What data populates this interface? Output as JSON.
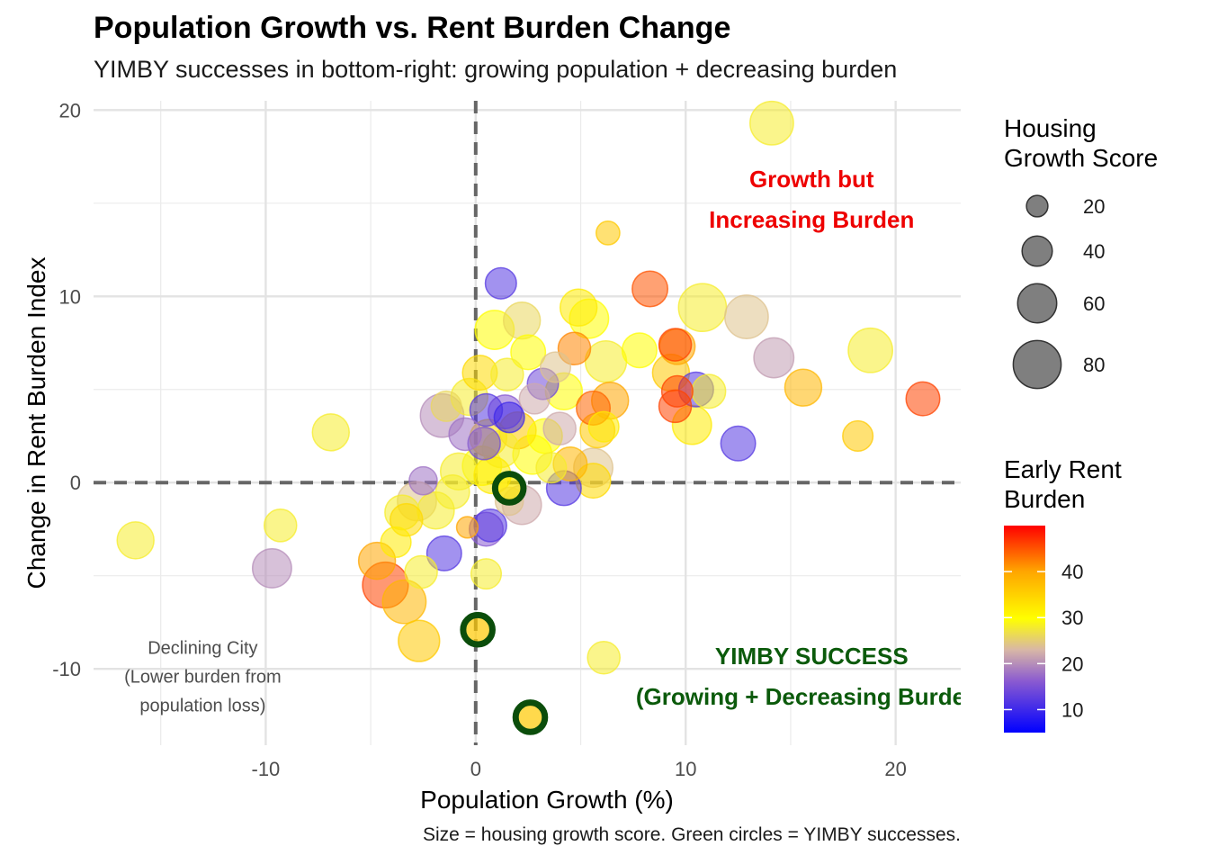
{
  "title": "Population Growth vs. Rent Burden Change",
  "subtitle": "YIMBY successes in bottom-right: growing population + decreasing burden",
  "caption": "Size = housing growth score. Green circles = YIMBY successes.",
  "chart_data": {
    "type": "scatter",
    "xlabel": "Population Growth (%)",
    "ylabel": "Change in Rent Burden Index",
    "xlim": [
      -18.2,
      23.1
    ],
    "ylim": [
      -14.1,
      20.5
    ],
    "x_ticks": [
      -10,
      0,
      10,
      20
    ],
    "y_ticks": [
      -10,
      0,
      10,
      20
    ],
    "x_tick_labels": [
      "-10",
      "0",
      "10",
      "20"
    ],
    "y_tick_labels": [
      "-10",
      "0",
      "10",
      "20"
    ],
    "grid": true,
    "reference_lines": {
      "x": 0,
      "y": 0,
      "style": "dashed"
    },
    "size_legend": {
      "title": [
        "Housing",
        "Growth Score"
      ],
      "values": [
        20,
        40,
        60,
        80
      ],
      "labels": [
        "20",
        "40",
        "60",
        "80"
      ]
    },
    "color_legend": {
      "title": [
        "Early Rent",
        "Burden"
      ],
      "min": 5,
      "max": 50,
      "breaks": [
        10,
        20,
        30,
        40
      ],
      "labels": [
        "10",
        "20",
        "30",
        "40"
      ],
      "colors": [
        "#0000ff",
        "#8b5bd0",
        "#d8b7a6",
        "#ffff00",
        "#ffa500",
        "#ff0000"
      ]
    },
    "annotations": [
      {
        "lines": [
          "Growth but",
          "Increasing Burden"
        ],
        "x": 16,
        "y": 15.2,
        "color": "#ee0000",
        "style": "bold"
      },
      {
        "lines": [
          "YIMBY SUCCESS",
          "(Growing + Decreasing Burden)"
        ],
        "x": 16,
        "y": -10.4,
        "color": "#0b5a0b",
        "style": "bold"
      },
      {
        "lines": [
          "Declining City",
          "(Lower burden from",
          "population loss)"
        ],
        "x": -13,
        "y": -10.3,
        "color": "#4d4d4d",
        "style": "plain"
      }
    ],
    "points": [
      {
        "x": 14.1,
        "y": 19.3,
        "size": 70,
        "burden": 28
      },
      {
        "x": 6.3,
        "y": 13.4,
        "size": 25,
        "burden": 36
      },
      {
        "x": 1.2,
        "y": 10.7,
        "size": 42,
        "burden": 12
      },
      {
        "x": 8.3,
        "y": 10.4,
        "size": 52,
        "burden": 45
      },
      {
        "x": 10.8,
        "y": 9.4,
        "size": 80,
        "burden": 28
      },
      {
        "x": 12.9,
        "y": 8.9,
        "size": 70,
        "burden": 24
      },
      {
        "x": 4.9,
        "y": 9.4,
        "size": 55,
        "burden": 32
      },
      {
        "x": 5.4,
        "y": 8.8,
        "size": 60,
        "burden": 30
      },
      {
        "x": 2.2,
        "y": 8.7,
        "size": 55,
        "burden": 26
      },
      {
        "x": 0.9,
        "y": 8.2,
        "size": 60,
        "burden": 30
      },
      {
        "x": 9.5,
        "y": 7.4,
        "size": 45,
        "burden": 46
      },
      {
        "x": 9.6,
        "y": 7.3,
        "size": 52,
        "burden": 40
      },
      {
        "x": 7.8,
        "y": 7.1,
        "size": 50,
        "burden": 30
      },
      {
        "x": 18.8,
        "y": 7.1,
        "size": 72,
        "burden": 28
      },
      {
        "x": 14.2,
        "y": 6.7,
        "size": 62,
        "burden": 21
      },
      {
        "x": 4.7,
        "y": 7.2,
        "size": 45,
        "burden": 42
      },
      {
        "x": 2.5,
        "y": 7.0,
        "size": 50,
        "burden": 30
      },
      {
        "x": 6.2,
        "y": 6.5,
        "size": 65,
        "burden": 28
      },
      {
        "x": 3.8,
        "y": 6.2,
        "size": 40,
        "burden": 24
      },
      {
        "x": 1.5,
        "y": 5.8,
        "size": 45,
        "burden": 28
      },
      {
        "x": 0.2,
        "y": 5.9,
        "size": 50,
        "burden": 34
      },
      {
        "x": 9.3,
        "y": 5.9,
        "size": 55,
        "burden": 36
      },
      {
        "x": 10.5,
        "y": 5.0,
        "size": 50,
        "burden": 12
      },
      {
        "x": 15.6,
        "y": 5.1,
        "size": 55,
        "burden": 38
      },
      {
        "x": 21.3,
        "y": 4.5,
        "size": 48,
        "burden": 46
      },
      {
        "x": 9.6,
        "y": 4.9,
        "size": 42,
        "burden": 46
      },
      {
        "x": 9.5,
        "y": 4.1,
        "size": 45,
        "burden": 46
      },
      {
        "x": 11.1,
        "y": 4.9,
        "size": 48,
        "burden": 28
      },
      {
        "x": 3.2,
        "y": 5.3,
        "size": 42,
        "burden": 14
      },
      {
        "x": 2.8,
        "y": 4.5,
        "size": 40,
        "burden": 22
      },
      {
        "x": 4.2,
        "y": 4.9,
        "size": 55,
        "burden": 30
      },
      {
        "x": 6.4,
        "y": 4.4,
        "size": 55,
        "burden": 40
      },
      {
        "x": 5.6,
        "y": 4.0,
        "size": 48,
        "burden": 44
      },
      {
        "x": 1.4,
        "y": 3.8,
        "size": 48,
        "burden": 16
      },
      {
        "x": 1.6,
        "y": 3.5,
        "size": 40,
        "burden": 10
      },
      {
        "x": 0.5,
        "y": 3.9,
        "size": 45,
        "burden": 12
      },
      {
        "x": -1.6,
        "y": 3.6,
        "size": 70,
        "burden": 20
      },
      {
        "x": -1.4,
        "y": 4.1,
        "size": 40,
        "burden": 26
      },
      {
        "x": -0.3,
        "y": 4.6,
        "size": 55,
        "burden": 28
      },
      {
        "x": -6.9,
        "y": 2.7,
        "size": 55,
        "burden": 28
      },
      {
        "x": 10.3,
        "y": 3.1,
        "size": 60,
        "burden": 32
      },
      {
        "x": 12.5,
        "y": 2.1,
        "size": 50,
        "burden": 12
      },
      {
        "x": 18.2,
        "y": 2.5,
        "size": 40,
        "burden": 36
      },
      {
        "x": 5.8,
        "y": 2.8,
        "size": 50,
        "burden": 36
      },
      {
        "x": 6.1,
        "y": 3.0,
        "size": 40,
        "burden": 32
      },
      {
        "x": 4.0,
        "y": 2.9,
        "size": 45,
        "burden": 22
      },
      {
        "x": 3.3,
        "y": 2.5,
        "size": 50,
        "burden": 30
      },
      {
        "x": 2.0,
        "y": 2.8,
        "size": 55,
        "burden": 36
      },
      {
        "x": 0.6,
        "y": 2.4,
        "size": 55,
        "burden": 34
      },
      {
        "x": 0.4,
        "y": 2.1,
        "size": 45,
        "burden": 14
      },
      {
        "x": -0.5,
        "y": 2.6,
        "size": 45,
        "burden": 18
      },
      {
        "x": 1.2,
        "y": 1.8,
        "size": 55,
        "burden": 28
      },
      {
        "x": 2.7,
        "y": 1.5,
        "size": 60,
        "burden": 30
      },
      {
        "x": 4.5,
        "y": 1.0,
        "size": 48,
        "burden": 38
      },
      {
        "x": 3.6,
        "y": 0.8,
        "size": 40,
        "burden": 28
      },
      {
        "x": 5.6,
        "y": 0.8,
        "size": 60,
        "burden": 24
      },
      {
        "x": 5.6,
        "y": 0.1,
        "size": 50,
        "burden": 34
      },
      {
        "x": 4.2,
        "y": -0.3,
        "size": 50,
        "burden": 12
      },
      {
        "x": 0.3,
        "y": 0.9,
        "size": 60,
        "burden": 30
      },
      {
        "x": -0.8,
        "y": 0.6,
        "size": 55,
        "burden": 28
      },
      {
        "x": 0.8,
        "y": 0.4,
        "size": 55,
        "burden": 32
      },
      {
        "x": -1.1,
        "y": -0.5,
        "size": 48,
        "burden": 28
      },
      {
        "x": -2.8,
        "y": -1.0,
        "size": 60,
        "burden": 24
      },
      {
        "x": -2.5,
        "y": 0.1,
        "size": 35,
        "burden": 18
      },
      {
        "x": -1.9,
        "y": -1.5,
        "size": 55,
        "burden": 28
      },
      {
        "x": -3.5,
        "y": -1.6,
        "size": 50,
        "burden": 28
      },
      {
        "x": -3.3,
        "y": -2.0,
        "size": 45,
        "burden": 34
      },
      {
        "x": 2.2,
        "y": -1.2,
        "size": 60,
        "burden": 22
      },
      {
        "x": 1.6,
        "y": -1.0,
        "size": 35,
        "burden": 24
      },
      {
        "x": 0.7,
        "y": -2.3,
        "size": 45,
        "burden": 12
      },
      {
        "x": 0.5,
        "y": -2.5,
        "size": 48,
        "burden": 16
      },
      {
        "x": -0.4,
        "y": -2.4,
        "size": 20,
        "burden": 40
      },
      {
        "x": -9.3,
        "y": -2.3,
        "size": 45,
        "burden": 28
      },
      {
        "x": -16.2,
        "y": -3.1,
        "size": 55,
        "burden": 28
      },
      {
        "x": -1.5,
        "y": -3.8,
        "size": 50,
        "burden": 12
      },
      {
        "x": -3.8,
        "y": -3.2,
        "size": 40,
        "burden": 32
      },
      {
        "x": -9.7,
        "y": -4.6,
        "size": 60,
        "burden": 20
      },
      {
        "x": -4.7,
        "y": -4.2,
        "size": 55,
        "burden": 40
      },
      {
        "x": -4.3,
        "y": -5.5,
        "size": 75,
        "burden": 46
      },
      {
        "x": -3.4,
        "y": -6.4,
        "size": 70,
        "burden": 38
      },
      {
        "x": -2.6,
        "y": -4.8,
        "size": 45,
        "burden": 28
      },
      {
        "x": 0.5,
        "y": -4.9,
        "size": 40,
        "burden": 28
      },
      {
        "x": -2.7,
        "y": -8.5,
        "size": 65,
        "burden": 36
      },
      {
        "x": 6.1,
        "y": -9.4,
        "size": 45,
        "burden": 28
      },
      {
        "x": 1.6,
        "y": -0.3,
        "size": 40,
        "burden": 32,
        "yimby": true
      },
      {
        "x": 0.1,
        "y": -7.9,
        "size": 42,
        "burden": 36,
        "yimby": true
      },
      {
        "x": 2.6,
        "y": -12.6,
        "size": 42,
        "burden": 36,
        "yimby": true
      }
    ]
  }
}
